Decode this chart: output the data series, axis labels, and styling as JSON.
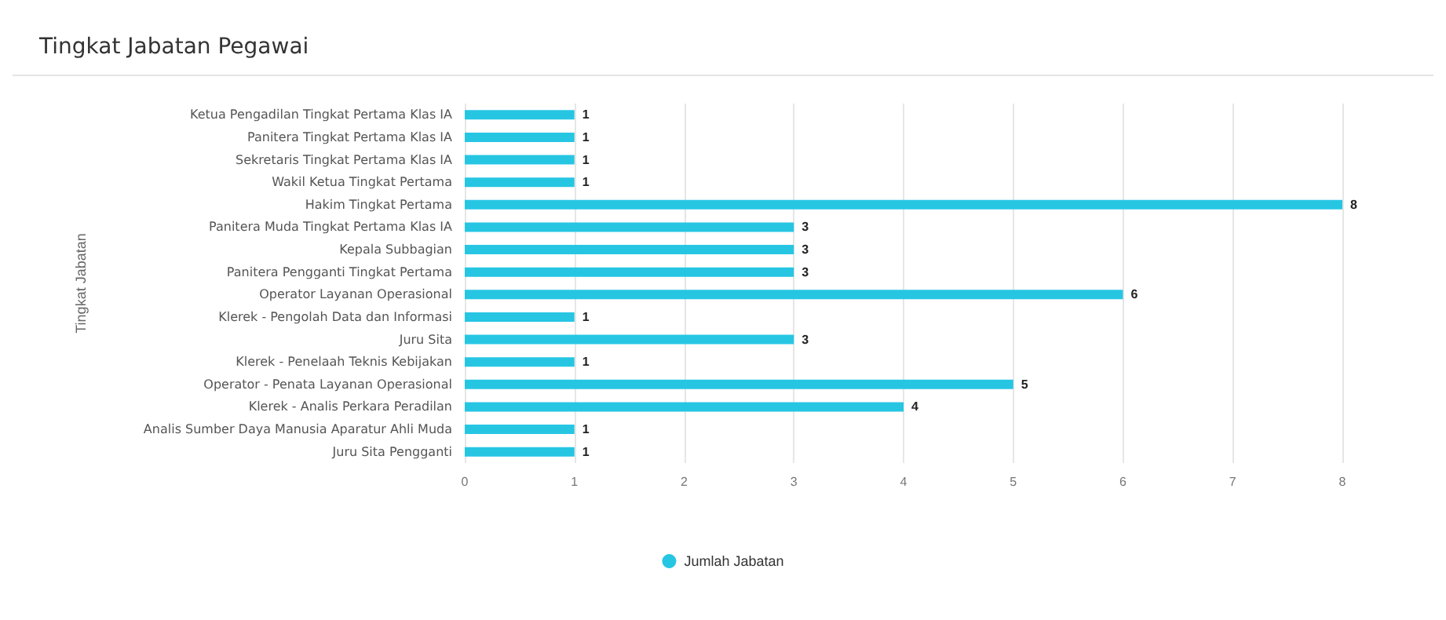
{
  "chart_data": {
    "type": "bar",
    "orientation": "horizontal",
    "title": "Tingkat Jabatan Pegawai",
    "ylabel": "Tingkat Jabatan",
    "categories": [
      "Ketua Pengadilan Tingkat Pertama Klas IA",
      "Panitera Tingkat Pertama Klas IA",
      "Sekretaris Tingkat Pertama Klas IA",
      "Wakil Ketua Tingkat Pertama",
      "Hakim Tingkat Pertama",
      "Panitera Muda Tingkat Pertama Klas IA",
      "Kepala Subbagian",
      "Panitera Pengganti Tingkat Pertama",
      "Operator Layanan Operasional",
      "Klerek - Pengolah Data dan Informasi",
      "Juru Sita",
      "Klerek - Penelaah Teknis Kebijakan",
      "Operator - Penata Layanan Operasional",
      "Klerek - Analis Perkara Peradilan",
      "Analis Sumber Daya Manusia Aparatur Ahli Muda",
      "Juru Sita Pengganti"
    ],
    "series": [
      {
        "name": "Jumlah Jabatan",
        "color": "#26c6e3",
        "values": [
          1,
          1,
          1,
          1,
          8,
          3,
          3,
          3,
          6,
          1,
          3,
          1,
          5,
          4,
          1,
          1
        ]
      }
    ],
    "xlim": [
      0,
      8
    ],
    "xticks": [
      0,
      1,
      2,
      3,
      4,
      5,
      6,
      7,
      8
    ],
    "grid": "x",
    "legend": "bottom",
    "data_labels": true,
    "marker": "circle"
  }
}
